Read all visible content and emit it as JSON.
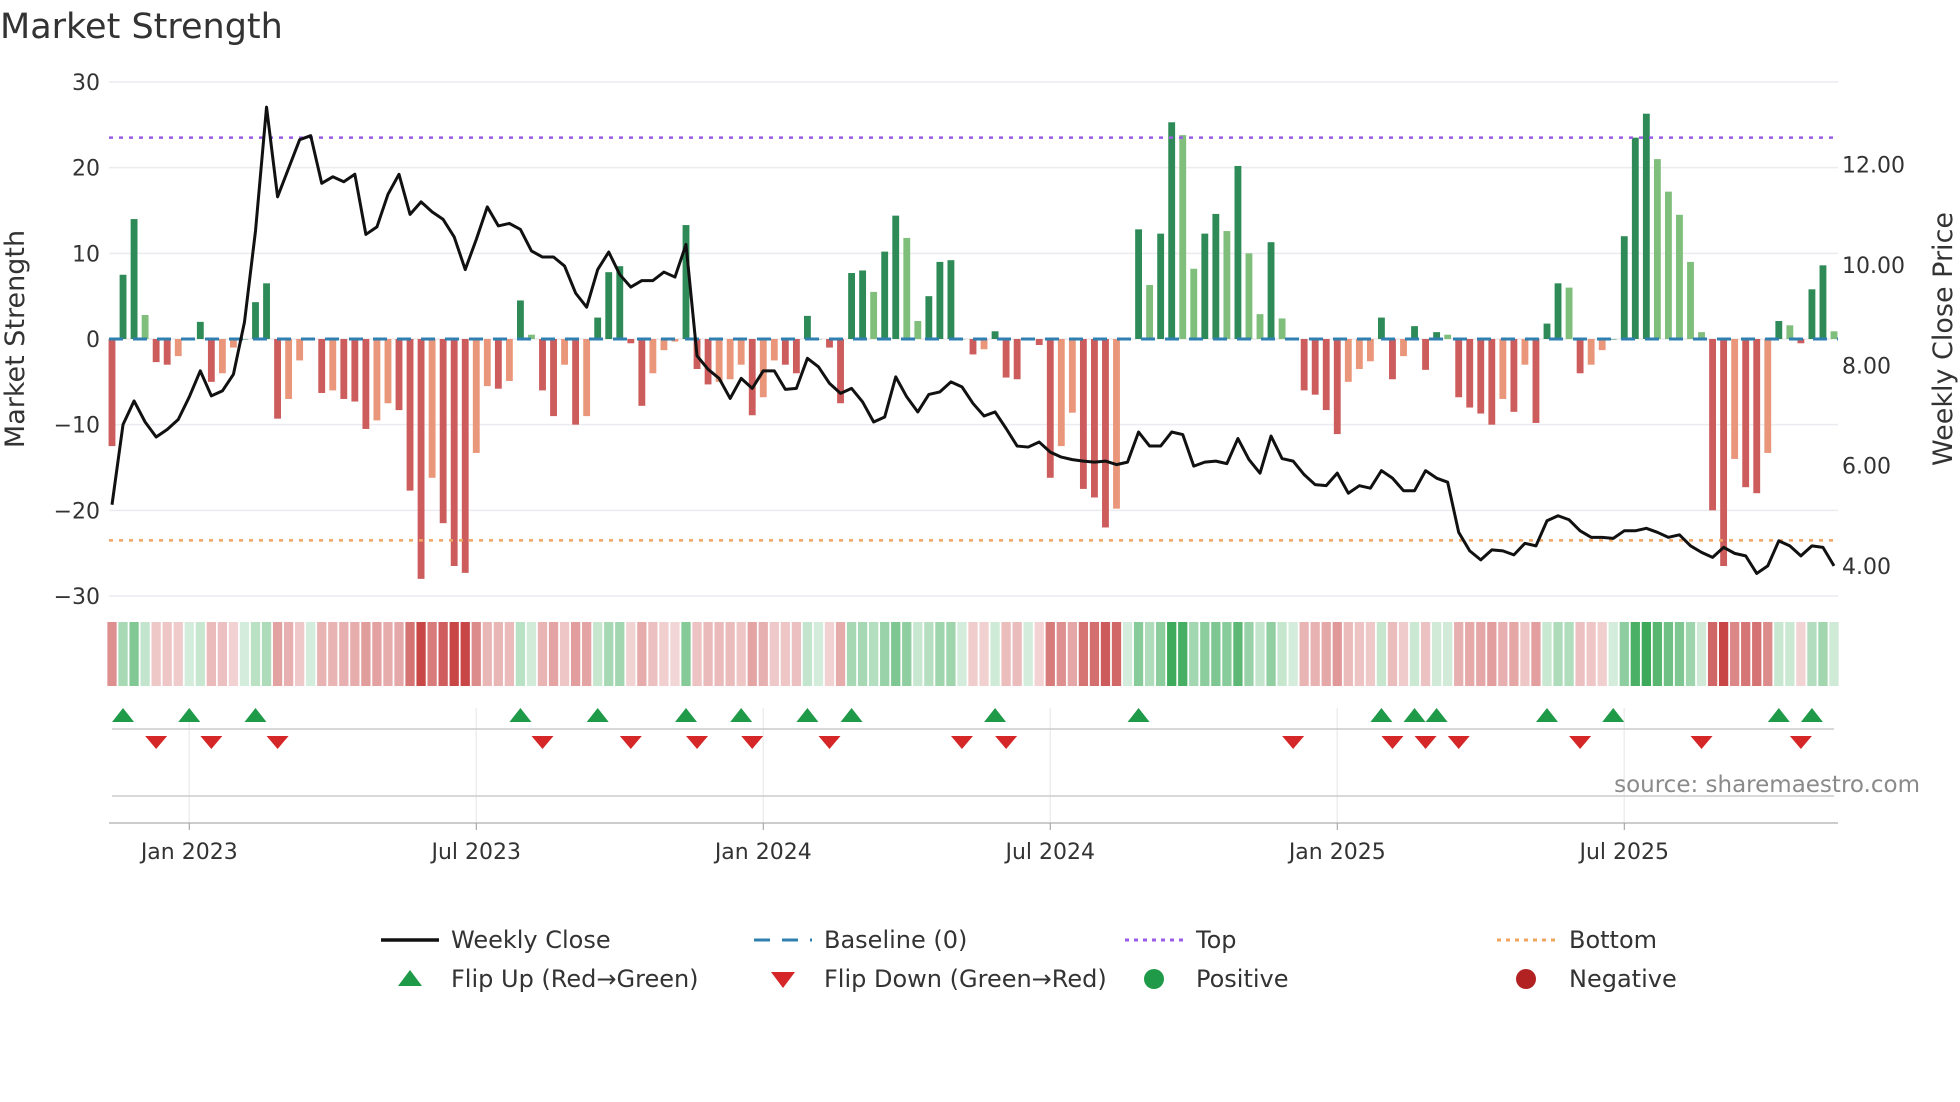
{
  "chart_data": {
    "type": "bar",
    "title": "Market Strength",
    "ylabel": "Market Strength",
    "y2label": "Weekly Close Price",
    "ylim": [
      -30,
      30
    ],
    "y2lim": [
      3.4,
      13.65
    ],
    "yticks": [
      "30",
      "20",
      "10",
      "0",
      "−10",
      "−20",
      "−30"
    ],
    "ytick_values": [
      30,
      20,
      10,
      0,
      -10,
      -20,
      -30
    ],
    "y2ticks": [
      "12.00",
      "10.00",
      "8.00",
      "6.00",
      "4.00"
    ],
    "y2tick_values": [
      12,
      10,
      8,
      6,
      4
    ],
    "x_start": "2022-11-13",
    "interval": "weekly",
    "xticks": [
      {
        "label": "Jan 2023",
        "week": 7
      },
      {
        "label": "Jul 2023",
        "week": 33
      },
      {
        "label": "Jan 2024",
        "week": 59
      },
      {
        "label": "Jul 2024",
        "week": 85
      },
      {
        "label": "Jan 2025",
        "week": 111
      },
      {
        "label": "Jul 2025",
        "week": 137
      }
    ],
    "top_level": 23.5,
    "bottom_level": -23.5,
    "strength": [
      -12.5,
      7.5,
      14,
      2.8,
      -2.7,
      -3,
      -2,
      0,
      2,
      -5,
      -4,
      -1,
      0,
      4.3,
      6.5,
      -9.3,
      -7,
      -2.5,
      0,
      -6.3,
      -6,
      -7,
      -7.3,
      -10.5,
      -9.5,
      -7.5,
      -8.3,
      -17.7,
      -28,
      -16.2,
      -21.5,
      -26.5,
      -27.3,
      -13.3,
      -5.5,
      -5.8,
      -4.9,
      4.5,
      0.5,
      -6,
      -9,
      -3,
      -10,
      -9,
      2.5,
      7.8,
      8.5,
      -0.5,
      -7.8,
      -4,
      -1.3,
      -0.3,
      13.3,
      -3.5,
      -5.3,
      -5,
      -4.7,
      -3,
      -8.9,
      -6.8,
      -2.5,
      -3,
      -4,
      2.7,
      0,
      -1,
      -7.5,
      7.7,
      8,
      5.5,
      10.2,
      14.4,
      11.8,
      2.1,
      5,
      9,
      9.2,
      0,
      -1.8,
      -1.2,
      0.9,
      -4.5,
      -4.7,
      0,
      -0.7,
      -16.2,
      -12.5,
      -8.6,
      -17.5,
      -18.5,
      -22,
      -19.8,
      0,
      12.8,
      6.3,
      12.3,
      25.3,
      23.8,
      8.2,
      12.3,
      14.6,
      12.6,
      20.2,
      10,
      2.9,
      11.3,
      2.4,
      0,
      -6,
      -6.5,
      -8.3,
      -11.1,
      -5,
      -3.5,
      -2.6,
      2.5,
      -4.7,
      -2,
      1.5,
      -3.6,
      0.8,
      0.5,
      -6.8,
      -8,
      -8.7,
      -10,
      -7,
      -8.5,
      -3,
      -9.8,
      1.8,
      6.5,
      6,
      -4,
      -3,
      -1.3,
      0,
      12,
      23.5,
      26.3,
      21,
      17.2,
      14.5,
      9,
      0.8,
      -20,
      -26.5,
      -14,
      -17.3,
      -18,
      -13.3,
      2.1,
      1.6,
      -0.5,
      5.8,
      8.6,
      0.9
    ],
    "weekly_close": [
      5.22,
      6.82,
      7.29,
      6.87,
      6.57,
      6.72,
      6.92,
      7.37,
      7.89,
      7.39,
      7.49,
      7.82,
      8.86,
      10.68,
      13.15,
      11.36,
      11.93,
      12.5,
      12.58,
      11.63,
      11.76,
      11.66,
      11.81,
      10.61,
      10.76,
      11.41,
      11.81,
      11.01,
      11.26,
      11.06,
      10.91,
      10.56,
      9.91,
      10.51,
      11.16,
      10.78,
      10.83,
      10.71,
      10.28,
      10.16,
      10.16,
      9.98,
      9.44,
      9.16,
      9.91,
      10.26,
      9.81,
      9.56,
      9.69,
      9.69,
      9.86,
      9.76,
      10.41,
      8.19,
      7.92,
      7.74,
      7.34,
      7.74,
      7.54,
      7.89,
      7.89,
      7.52,
      7.54,
      8.14,
      7.97,
      7.64,
      7.44,
      7.54,
      7.27,
      6.87,
      6.97,
      7.77,
      7.37,
      7.07,
      7.42,
      7.47,
      7.67,
      7.57,
      7.24,
      6.99,
      7.07,
      6.74,
      6.39,
      6.37,
      6.47,
      6.27,
      6.17,
      6.12,
      6.09,
      6.07,
      6.09,
      6.02,
      6.07,
      6.67,
      6.39,
      6.39,
      6.67,
      6.62,
      5.99,
      6.07,
      6.09,
      6.04,
      6.54,
      6.12,
      5.85,
      6.59,
      6.14,
      6.09,
      5.82,
      5.62,
      5.6,
      5.85,
      5.45,
      5.6,
      5.55,
      5.9,
      5.75,
      5.5,
      5.5,
      5.9,
      5.75,
      5.67,
      4.67,
      4.3,
      4.12,
      4.32,
      4.3,
      4.22,
      4.45,
      4.4,
      4.9,
      5.0,
      4.92,
      4.7,
      4.57,
      4.57,
      4.55,
      4.7,
      4.7,
      4.75,
      4.67,
      4.57,
      4.62,
      4.4,
      4.27,
      4.17,
      4.37,
      4.25,
      4.2,
      3.85,
      4.0,
      4.5,
      4.4,
      4.2,
      4.4,
      4.37,
      4.0
    ],
    "flip_up_weeks": [
      1,
      7,
      13,
      37,
      44,
      52,
      57,
      63,
      67,
      80,
      93,
      115,
      118,
      120,
      130,
      136,
      151,
      154
    ],
    "flip_down_weeks": [
      4,
      9,
      15,
      39,
      47,
      53,
      58,
      65,
      77,
      81,
      107,
      116,
      119,
      122,
      133,
      144,
      153
    ],
    "legend": [
      {
        "label": "Weekly Close",
        "kind": "line",
        "color": "#111111"
      },
      {
        "label": "Baseline (0)",
        "kind": "dash",
        "color": "#2f7fb0"
      },
      {
        "label": "Top",
        "kind": "dot",
        "color": "#9b5de5"
      },
      {
        "label": "Bottom",
        "kind": "dot",
        "color": "#f0a560"
      },
      {
        "label": "Flip Up (Red→Green)",
        "kind": "up",
        "color": "#1f9a48"
      },
      {
        "label": "Flip Down (Green→Red)",
        "kind": "down",
        "color": "#d62728"
      },
      {
        "label": "Positive",
        "kind": "circle",
        "color": "#1f9a48"
      },
      {
        "label": "Negative",
        "kind": "circle",
        "color": "#b22222"
      }
    ],
    "legend_placement": "bottom",
    "colors": {
      "pos_rising": "#2e8b57",
      "pos_falling": "#7fbf7b",
      "neg_falling": "#cd5c5c",
      "neg_rising": "#e9967a"
    },
    "source": "source: sharemaestro.com"
  }
}
